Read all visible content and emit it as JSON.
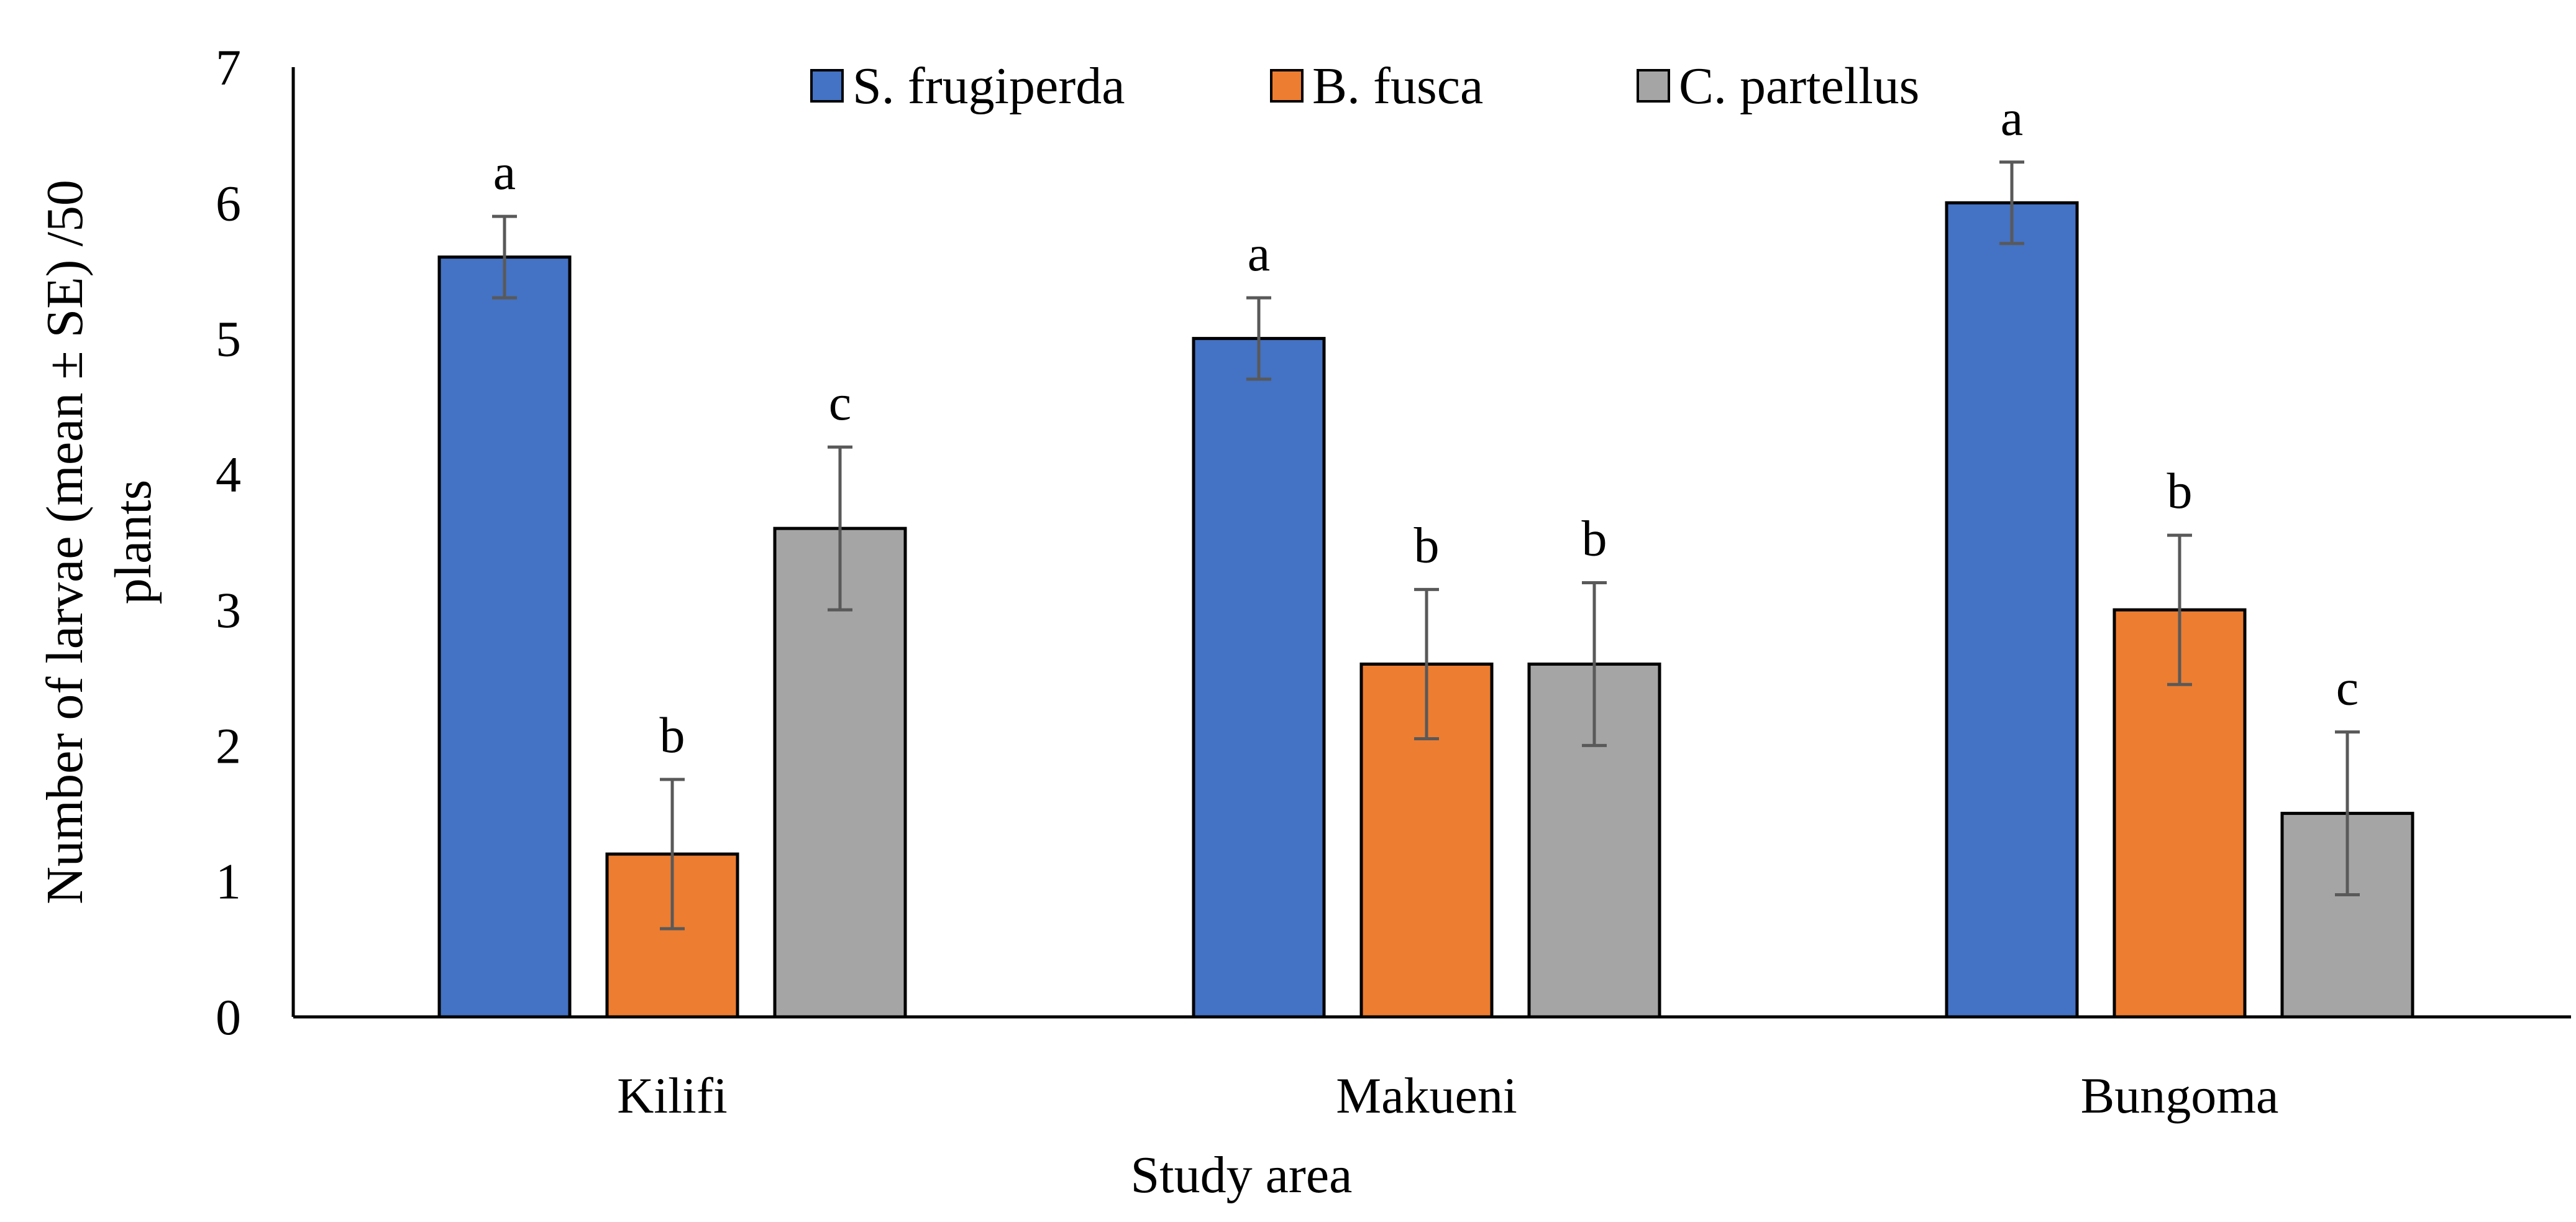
{
  "chart_data": {
    "type": "bar",
    "title": "",
    "xlabel": "Study area",
    "ylabel": "Number of larvae (mean ± SE) /50 plants",
    "ylabel_lines": [
      "Number of larvae (mean ± SE) /50",
      "plants"
    ],
    "ylim": [
      0,
      7
    ],
    "yticks": [
      0,
      1,
      2,
      3,
      4,
      5,
      6,
      7
    ],
    "grid": false,
    "legend_position": "top",
    "categories": [
      "Kilifi",
      "Makueni",
      "Bungoma"
    ],
    "series": [
      {
        "name": "S. frugiperda",
        "color": "#4472C4",
        "values": [
          5.6,
          5.0,
          6.0
        ],
        "errors": [
          0.3,
          0.3,
          0.3
        ],
        "labels": [
          "a",
          "a",
          "a"
        ]
      },
      {
        "name": "B. fusca",
        "color": "#ED7D31",
        "values": [
          1.2,
          2.6,
          3.0
        ],
        "errors": [
          0.55,
          0.55,
          0.55
        ],
        "labels": [
          "b",
          "b",
          "b"
        ]
      },
      {
        "name": "C. partellus",
        "color": "#A5A5A5",
        "values": [
          3.6,
          2.6,
          1.5
        ],
        "errors": [
          0.6,
          0.6,
          0.6
        ],
        "labels": [
          "c",
          "b",
          "c"
        ]
      }
    ]
  }
}
